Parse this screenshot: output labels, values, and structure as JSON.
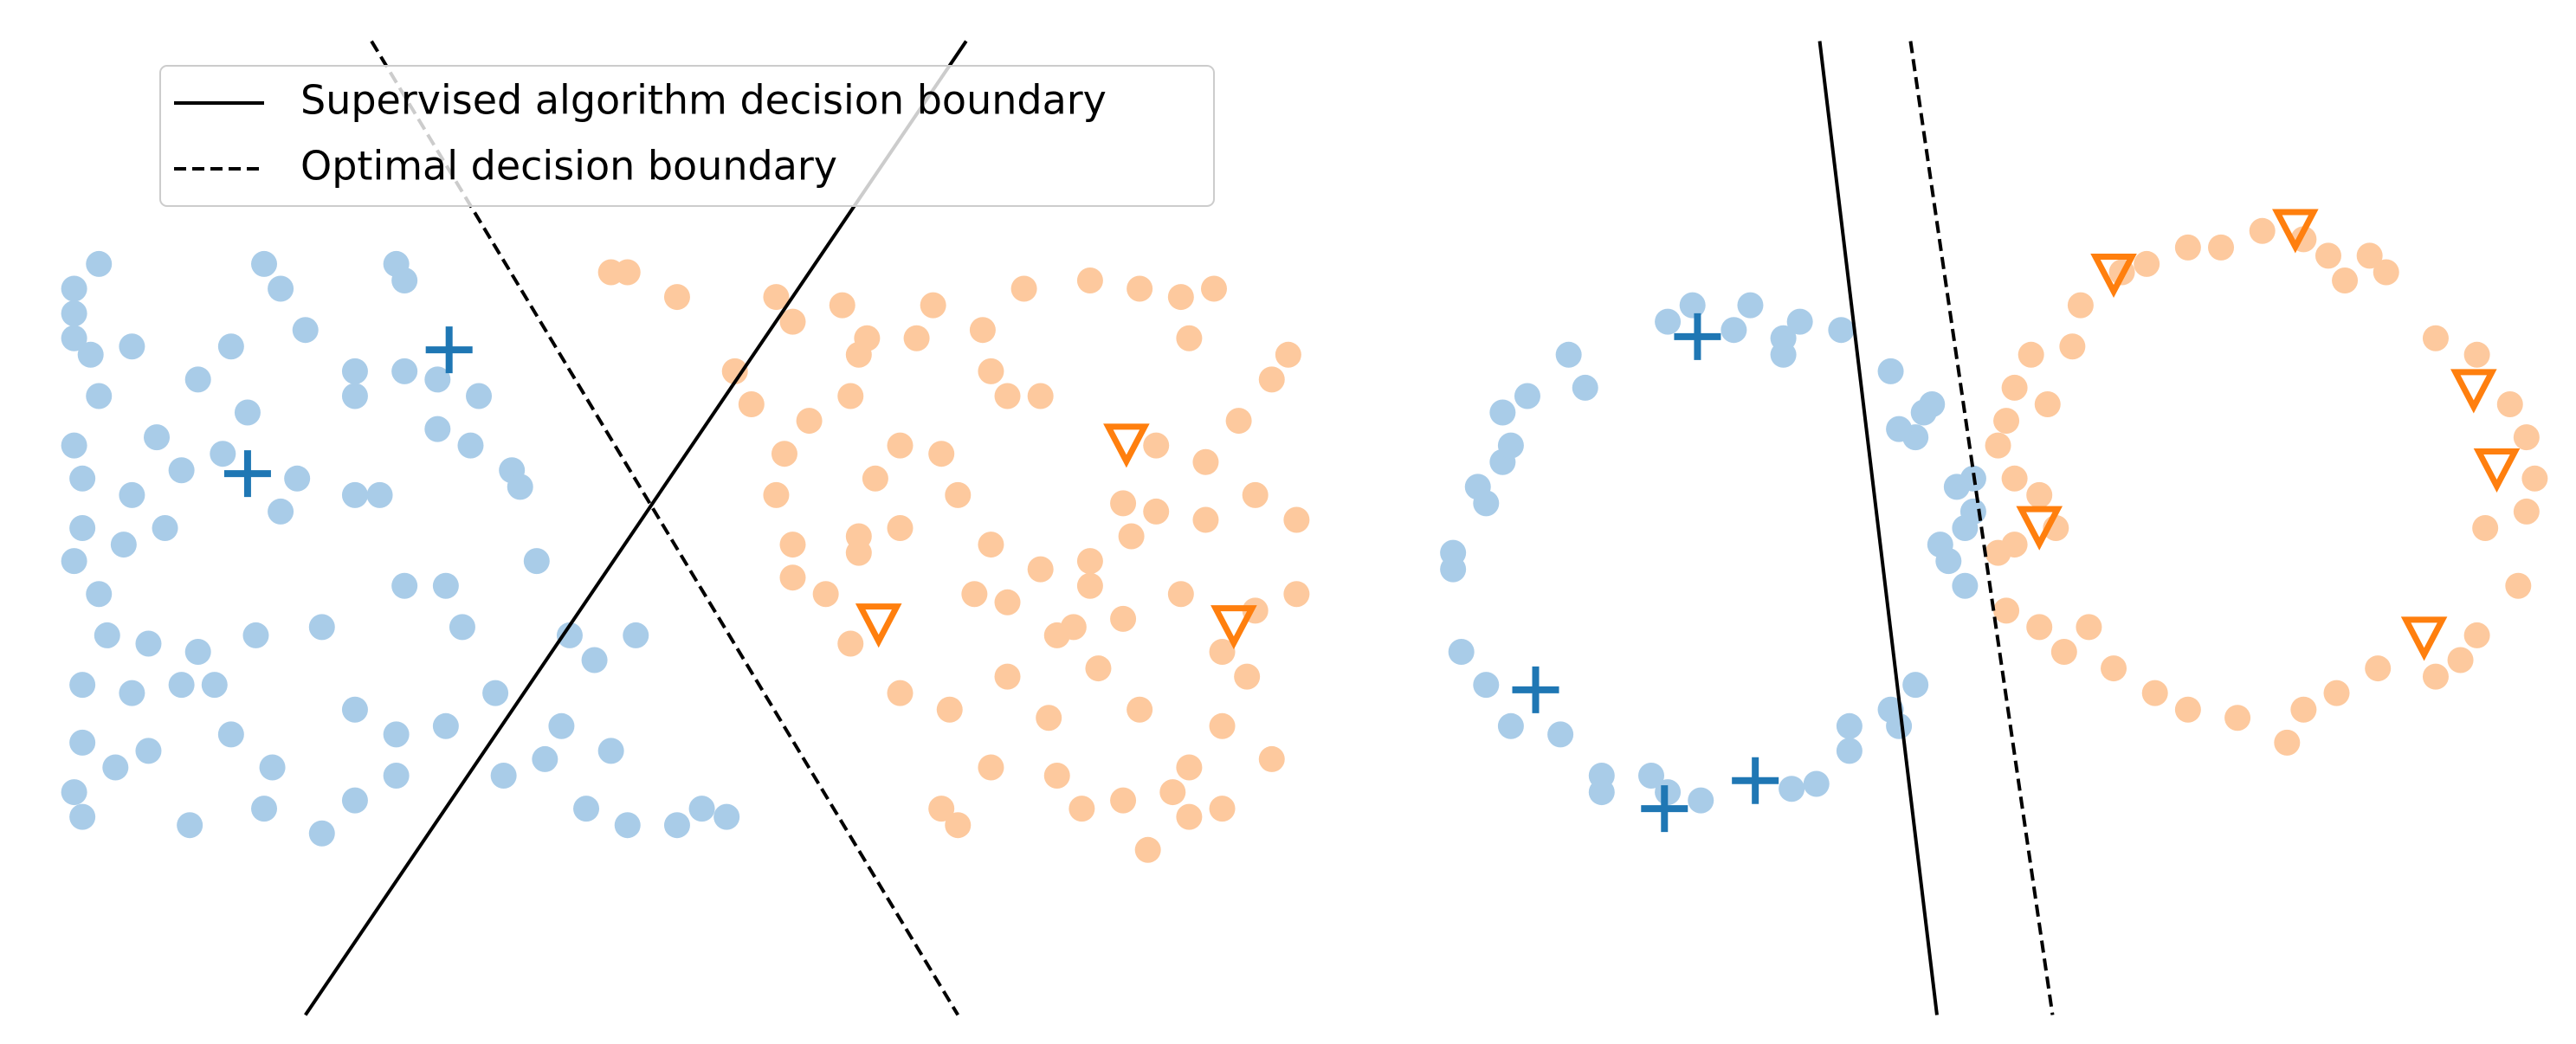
{
  "chart_data": [
    {
      "type": "scatter",
      "xlim": [
        30,
        800
      ],
      "ylim": [
        620,
        20
      ],
      "legend": "upper left",
      "series": [
        {
          "color": "#a9cce8",
          "marker": "o",
          "x": [
            60,
            45,
            45,
            45,
            55,
            80,
            60,
            45,
            95,
            50,
            80,
            50,
            75,
            100,
            45,
            60,
            65,
            90,
            120,
            50,
            80,
            110,
            50,
            90,
            45,
            50,
            70,
            115,
            160,
            170,
            185,
            140,
            120,
            150,
            135,
            180,
            170,
            110,
            155,
            195,
            130,
            140,
            165,
            160,
            195,
            215,
            240,
            215,
            240,
            215,
            215,
            245,
            265,
            290,
            265,
            285,
            240,
            245,
            215,
            230,
            245,
            270,
            280,
            270,
            300,
            310,
            315,
            325,
            330,
            340,
            345,
            360,
            370,
            355,
            380,
            410,
            425,
            440,
            385,
            305
          ],
          "y": [
            160,
            175,
            190,
            205,
            215,
            210,
            240,
            270,
            265,
            290,
            300,
            320,
            330,
            320,
            340,
            360,
            385,
            390,
            395,
            415,
            420,
            415,
            450,
            455,
            480,
            495,
            465,
            500,
            160,
            175,
            200,
            210,
            230,
            250,
            275,
            290,
            310,
            285,
            385,
            380,
            415,
            445,
            465,
            490,
            505,
            485,
            470,
            430,
            445,
            225,
            240,
            225,
            230,
            240,
            260,
            270,
            160,
            170,
            300,
            300,
            355,
            355,
            380,
            440,
            420,
            285,
            295,
            340,
            460,
            440,
            385,
            400,
            455,
            490,
            500,
            500,
            490,
            495,
            385,
            470
          ]
        },
        {
          "color": "#1f77b4",
          "marker": "+",
          "x": [
            150,
            272
          ],
          "y": [
            287,
            212
          ]
        },
        {
          "color": "#fdc99e",
          "marker": "o",
          "x": [
            370,
            380,
            410,
            470,
            480,
            510,
            455,
            445,
            490,
            520,
            515,
            555,
            565,
            595,
            600,
            610,
            630,
            620,
            660,
            690,
            715,
            735,
            720,
            780,
            770,
            750,
            700,
            730,
            760,
            785,
            785,
            760,
            730,
            700,
            680,
            685,
            660,
            660,
            630,
            600,
            580,
            570,
            545,
            530,
            520,
            545,
            475,
            470,
            480,
            480,
            500,
            590,
            610,
            650,
            680,
            715,
            740,
            755,
            740,
            770,
            720,
            690,
            665,
            640,
            635,
            610,
            575,
            545,
            515,
            600,
            640,
            655,
            680,
            710,
            720,
            740,
            695,
            570,
            580,
            520,
            525
          ],
          "y": [
            165,
            165,
            180,
            180,
            195,
            185,
            245,
            225,
            255,
            215,
            240,
            205,
            185,
            200,
            225,
            240,
            240,
            175,
            170,
            175,
            180,
            175,
            205,
            215,
            230,
            255,
            270,
            280,
            300,
            315,
            360,
            370,
            315,
            310,
            305,
            325,
            340,
            355,
            345,
            330,
            300,
            275,
            270,
            290,
            325,
            320,
            275,
            300,
            330,
            350,
            360,
            360,
            365,
            380,
            375,
            360,
            395,
            410,
            440,
            460,
            465,
            430,
            405,
            385,
            435,
            410,
            430,
            420,
            390,
            465,
            470,
            490,
            485,
            480,
            495,
            490,
            515,
            490,
            500,
            335,
            205
          ]
        },
        {
          "color": "#ff7f0e",
          "marker": "v",
          "x": [
            682,
            532,
            747
          ],
          "y": [
            268,
            377,
            378
          ]
        }
      ],
      "lines": [
        {
          "name": "Supervised algorithm decision boundary",
          "style": "solid",
          "x": [
            185,
            585
          ],
          "y": [
            615,
            25
          ]
        },
        {
          "name": "Optimal decision boundary",
          "style": "dashed",
          "x": [
            225,
            580
          ],
          "y": [
            25,
            615
          ]
        }
      ]
    },
    {
      "type": "scatter",
      "xlim": [
        860,
        1550
      ],
      "ylim": [
        620,
        20
      ],
      "series": [
        {
          "color": "#a9cce8",
          "marker": "o",
          "x": [
            1025,
            1060,
            1080,
            1090,
            1115,
            1145,
            1165,
            1160,
            1185,
            1190,
            1180,
            1190,
            1175,
            1195,
            1160,
            1145,
            1150,
            1120,
            1100,
            1085,
            1030,
            1000,
            970,
            970,
            945,
            915,
            900,
            885,
            880,
            880,
            900,
            895,
            910,
            915,
            910,
            925,
            950,
            960,
            1010,
            1050,
            1080,
            1010,
            1120,
            1195,
            1150,
            1170
          ],
          "y": [
            185,
            185,
            205,
            195,
            200,
            225,
            250,
            265,
            295,
            320,
            340,
            355,
            330,
            310,
            415,
            430,
            440,
            455,
            475,
            478,
            485,
            470,
            470,
            480,
            445,
            440,
            415,
            395,
            345,
            335,
            305,
            295,
            280,
            270,
            250,
            240,
            215,
            235,
            195,
            200,
            215,
            480,
            440,
            290,
            260,
            245
          ]
        },
        {
          "color": "#1f77b4",
          "marker": "+",
          "x": [
            1028,
            930,
            1008,
            1063
          ],
          "y": [
            204,
            418,
            490,
            473
          ]
        },
        {
          "color": "#fdc99e",
          "marker": "o",
          "x": [
            1220,
            1215,
            1210,
            1220,
            1235,
            1245,
            1220,
            1210,
            1240,
            1255,
            1260,
            1285,
            1300,
            1325,
            1345,
            1370,
            1395,
            1410,
            1435,
            1445,
            1420,
            1475,
            1500,
            1520,
            1530,
            1535,
            1530,
            1505,
            1525,
            1500,
            1490,
            1475,
            1440,
            1415,
            1395,
            1385,
            1355,
            1325,
            1305,
            1280,
            1265,
            1235,
            1250,
            1215,
            1230
          ],
          "y": [
            235,
            255,
            270,
            290,
            300,
            320,
            330,
            335,
            245,
            210,
            185,
            165,
            160,
            150,
            150,
            140,
            145,
            155,
            155,
            165,
            170,
            205,
            215,
            245,
            265,
            290,
            310,
            320,
            355,
            385,
            400,
            410,
            405,
            420,
            430,
            450,
            435,
            430,
            420,
            405,
            380,
            380,
            395,
            370,
            215
          ]
        },
        {
          "color": "#ff7f0e",
          "marker": "v",
          "x": [
            1280,
            1390,
            1498,
            1512,
            1235,
            1468
          ],
          "y": [
            165,
            138,
            235,
            283,
            318,
            385
          ]
        }
      ],
      "lines": [
        {
          "style": "solid",
          "x": [
            1102,
            1173
          ],
          "y": [
            25,
            615
          ]
        },
        {
          "style": "dashed",
          "x": [
            1157,
            1243
          ],
          "y": [
            25,
            615
          ]
        }
      ]
    }
  ]
}
